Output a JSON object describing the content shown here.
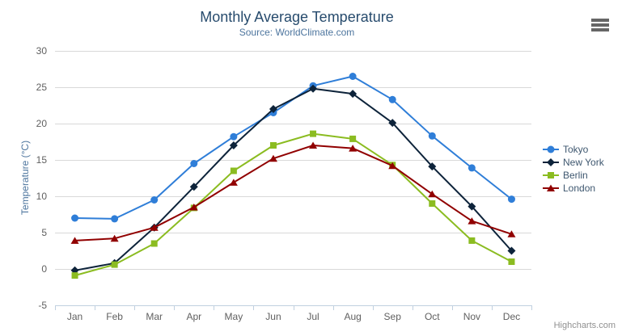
{
  "chart_data": {
    "type": "line",
    "title": "Monthly Average Temperature",
    "subtitle": "Source: WorldClimate.com",
    "xlabel": "",
    "ylabel": "Temperature (°C)",
    "ylim": [
      -5,
      30
    ],
    "y_tick_step": 5,
    "grid": true,
    "legend_position": "right",
    "credits": "Highcharts.com",
    "categories": [
      "Jan",
      "Feb",
      "Mar",
      "Apr",
      "May",
      "Jun",
      "Jul",
      "Aug",
      "Sep",
      "Oct",
      "Nov",
      "Dec"
    ],
    "series": [
      {
        "name": "Tokyo",
        "color": "#2f7ed8",
        "marker": "circle",
        "values": [
          7.0,
          6.9,
          9.5,
          14.5,
          18.2,
          21.5,
          25.2,
          26.5,
          23.3,
          18.3,
          13.9,
          9.6
        ]
      },
      {
        "name": "New York",
        "color": "#0d233a",
        "marker": "diamond",
        "values": [
          -0.2,
          0.8,
          5.7,
          11.3,
          17.0,
          22.0,
          24.8,
          24.1,
          20.1,
          14.1,
          8.6,
          2.5
        ]
      },
      {
        "name": "Berlin",
        "color": "#8bbc21",
        "marker": "square",
        "values": [
          -0.9,
          0.6,
          3.5,
          8.4,
          13.5,
          17.0,
          18.6,
          17.9,
          14.3,
          9.0,
          3.9,
          1.0
        ]
      },
      {
        "name": "London",
        "color": "#910000",
        "marker": "triangle",
        "values": [
          3.9,
          4.2,
          5.7,
          8.5,
          11.9,
          15.2,
          17.0,
          16.6,
          14.2,
          10.3,
          6.6,
          4.8
        ]
      }
    ]
  },
  "theme": {
    "title_color": "#274b6d",
    "subtitle_color": "#4d759e",
    "axis_title_color": "#4d759e",
    "axis_label_color": "#606060",
    "legend_text_color": "#3e576f",
    "grid_color": "#d8d8d8",
    "axis_line_color": "#c0d0e0",
    "credits_color": "#909090",
    "menu_icon_color": "#666666",
    "background": "#ffffff"
  }
}
